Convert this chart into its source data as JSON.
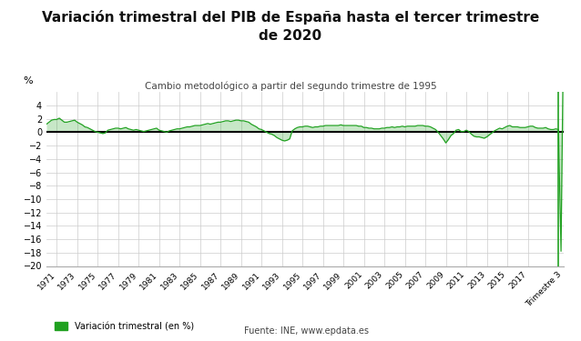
{
  "title": "Variación trimestral del PIB de España hasta el tercer trimestre\nde 2020",
  "subtitle": "Cambio metodológico a partir del segundo trimestre de 1995",
  "ylabel": "%",
  "source_text": "Fuente: INE, www.epdata.es",
  "legend_label": "Variación trimestral (en %)",
  "line_color": "#21a121",
  "fill_color": "#21a121",
  "background_color": "#ffffff",
  "grid_color": "#cccccc",
  "ylim": [
    -20,
    6
  ],
  "yticks": [
    4,
    2,
    0,
    -2,
    -4,
    -6,
    -8,
    -10,
    -12,
    -14,
    -16,
    -18,
    -20
  ],
  "x_tick_labels": [
    "1971",
    "1973",
    "1975",
    "1977",
    "1979",
    "1981",
    "1983",
    "1985",
    "1987",
    "1989",
    "1991",
    "1993",
    "1995",
    "1997",
    "1999",
    "2001",
    "2003",
    "2005",
    "2007",
    "2009",
    "2011",
    "2013",
    "2015",
    "2017",
    "Trimestre 3"
  ],
  "quarterly_data": [
    1.2,
    1.5,
    1.8,
    1.9,
    1.9,
    2.1,
    1.8,
    1.5,
    1.5,
    1.6,
    1.7,
    1.8,
    1.5,
    1.3,
    1.1,
    0.8,
    0.7,
    0.5,
    0.3,
    0.1,
    0.0,
    -0.1,
    -0.2,
    -0.1,
    0.3,
    0.4,
    0.5,
    0.6,
    0.6,
    0.5,
    0.6,
    0.7,
    0.5,
    0.4,
    0.3,
    0.4,
    0.3,
    0.2,
    0.1,
    0.2,
    0.3,
    0.4,
    0.5,
    0.6,
    0.3,
    0.2,
    0.1,
    0.0,
    0.2,
    0.3,
    0.4,
    0.5,
    0.5,
    0.6,
    0.7,
    0.8,
    0.8,
    0.9,
    1.0,
    1.0,
    1.0,
    1.1,
    1.2,
    1.3,
    1.2,
    1.3,
    1.4,
    1.5,
    1.5,
    1.6,
    1.7,
    1.7,
    1.6,
    1.7,
    1.8,
    1.8,
    1.7,
    1.7,
    1.6,
    1.5,
    1.2,
    1.0,
    0.8,
    0.5,
    0.4,
    0.2,
    0.0,
    -0.2,
    -0.3,
    -0.5,
    -0.8,
    -1.0,
    -1.2,
    -1.3,
    -1.2,
    -1.0,
    0.2,
    0.5,
    0.7,
    0.8,
    0.8,
    0.9,
    0.9,
    0.8,
    0.7,
    0.8,
    0.8,
    0.9,
    0.9,
    1.0,
    1.0,
    1.0,
    1.0,
    1.0,
    1.0,
    1.1,
    1.0,
    1.0,
    1.0,
    1.0,
    1.0,
    1.0,
    0.9,
    0.9,
    0.7,
    0.7,
    0.6,
    0.6,
    0.5,
    0.5,
    0.5,
    0.6,
    0.6,
    0.7,
    0.7,
    0.8,
    0.7,
    0.8,
    0.8,
    0.9,
    0.8,
    0.9,
    0.9,
    0.9,
    0.9,
    1.0,
    1.0,
    1.0,
    0.9,
    0.9,
    0.8,
    0.6,
    0.4,
    0.0,
    -0.5,
    -1.0,
    -1.6,
    -1.1,
    -0.5,
    -0.2,
    0.3,
    0.4,
    0.1,
    0.1,
    0.3,
    0.1,
    -0.3,
    -0.6,
    -0.7,
    -0.7,
    -0.8,
    -0.9,
    -0.7,
    -0.4,
    -0.1,
    0.2,
    0.4,
    0.6,
    0.5,
    0.7,
    0.9,
    1.0,
    0.8,
    0.8,
    0.8,
    0.7,
    0.7,
    0.7,
    0.8,
    0.9,
    0.9,
    0.7,
    0.6,
    0.6,
    0.6,
    0.7,
    0.5,
    0.4,
    0.4,
    0.5,
    0.4,
    -17.8,
    16.7
  ],
  "start_year": 1970,
  "vline_year": 2020
}
